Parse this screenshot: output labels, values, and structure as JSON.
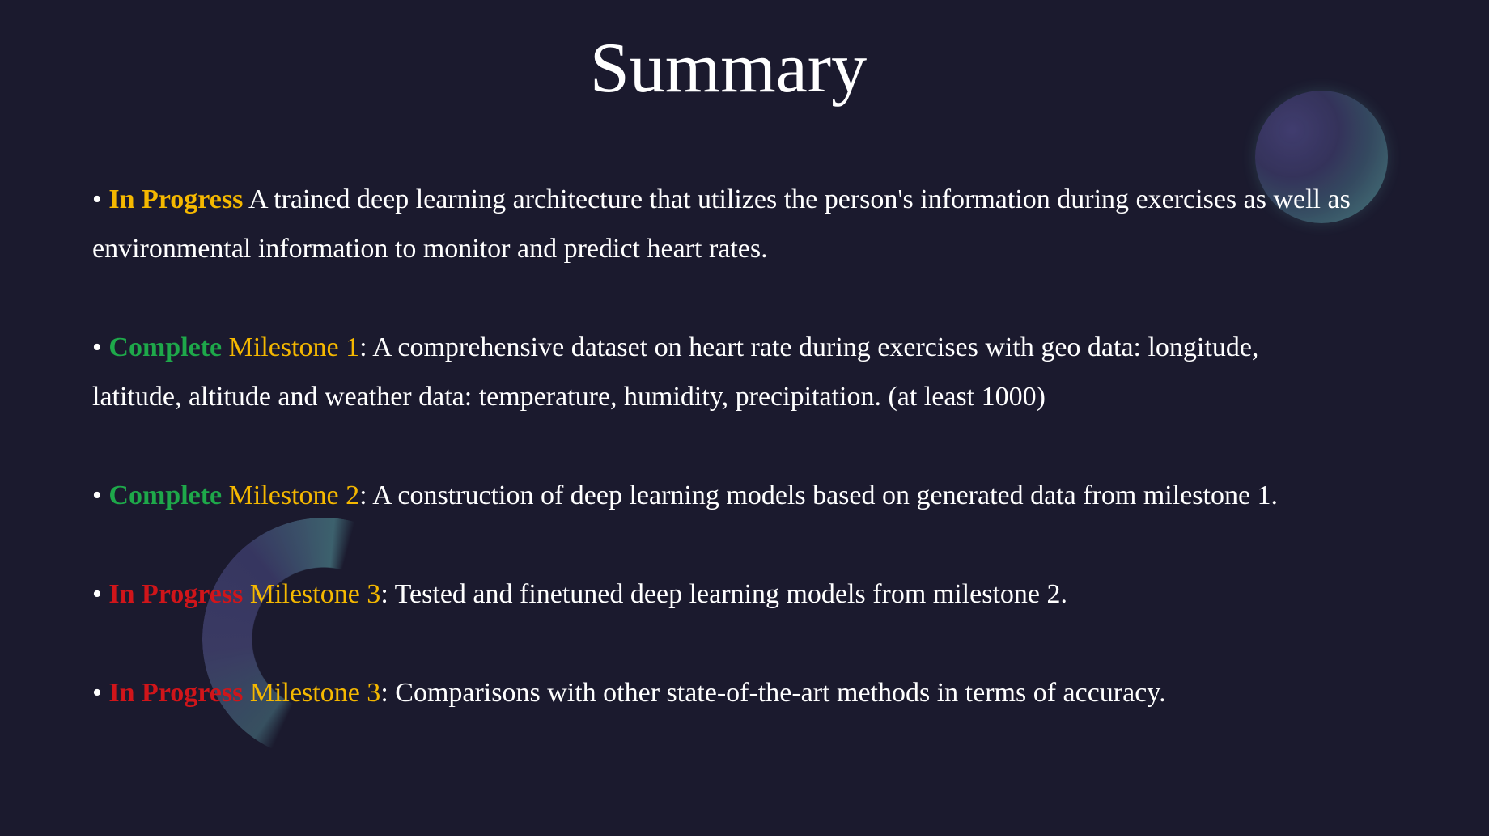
{
  "slide": {
    "title": "Summary",
    "bullet_glyph": "•",
    "colors": {
      "background": "#1b1a2e",
      "in_progress_yellow": "#f5b800",
      "complete_green": "#1ea84a",
      "in_progress_red": "#d0151a",
      "milestone": "#f5b800",
      "text": "#ffffff"
    },
    "items": [
      {
        "status": "In Progress",
        "milestone": "",
        "separator": "",
        "text": "A trained deep learning architecture that utilizes the person's information during exercises as well as environmental information to monitor and predict heart rates."
      },
      {
        "status": "Complete",
        "milestone": "Milestone 1",
        "separator": ":",
        "text": "A comprehensive dataset on heart rate during exercises with geo data: longitude, latitude, altitude and weather data: temperature, humidity, precipitation. (at least 1000)"
      },
      {
        "status": "Complete",
        "milestone": "Milestone 2",
        "separator": ":",
        "text": "A construction of deep learning models based on generated data from milestone 1."
      },
      {
        "status": "In Progress",
        "milestone": "Milestone 3",
        "separator": ":",
        "text": "Tested and finetuned deep learning models from milestone 2."
      },
      {
        "status": "In Progress",
        "milestone": "Milestone 3",
        "separator": ":",
        "text": "Comparisons with other state-of-the-art methods in terms of accuracy."
      }
    ]
  }
}
